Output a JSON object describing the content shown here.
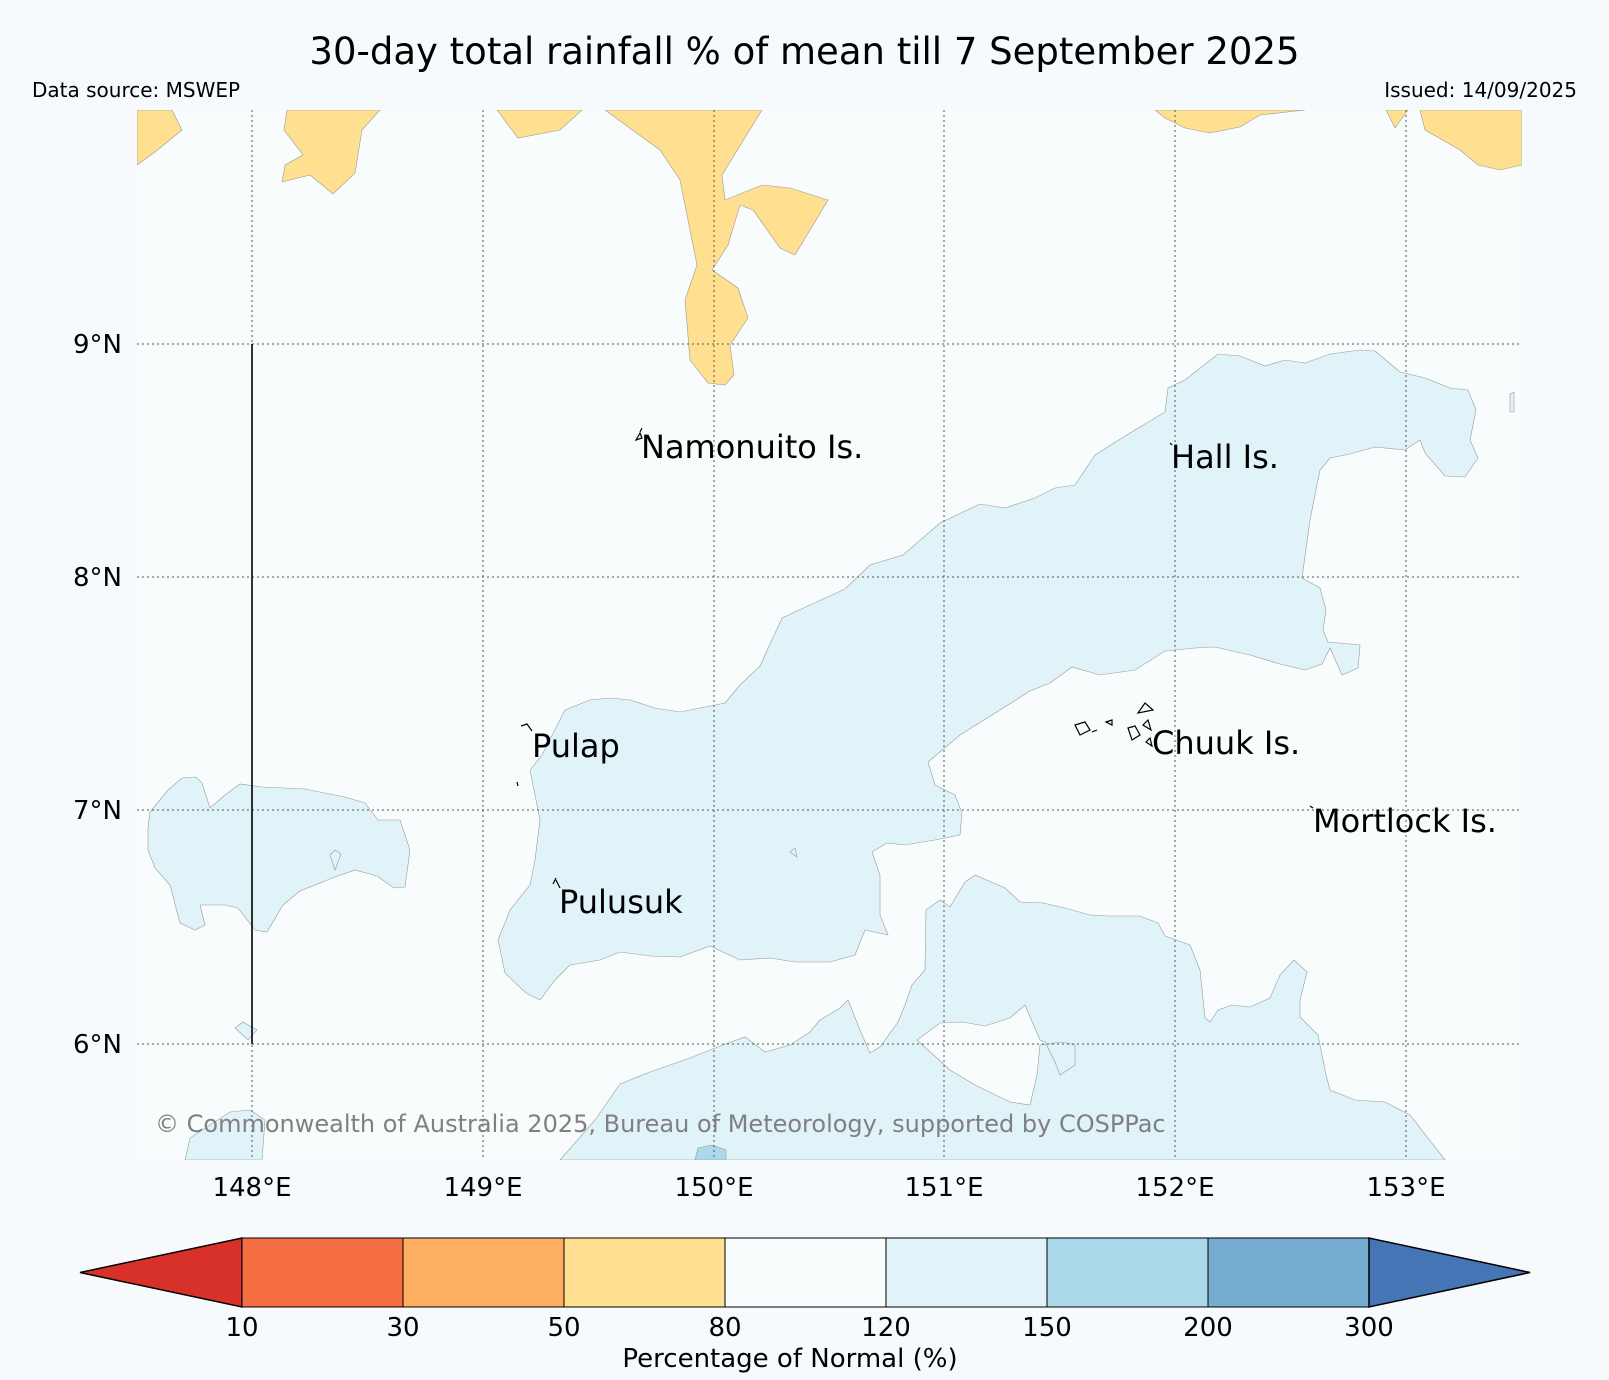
{
  "title": "30-day total rainfall % of mean till 7 September 2025",
  "data_source": "Data source: MSWEP",
  "issued": "Issued: 14/09/2025",
  "copyright": "© Commonwealth of Australia 2025, Bureau of Meteorology, supported by COSPPac",
  "map": {
    "lon_range": [
      147.5,
      153.5
    ],
    "lat_range": [
      5.5,
      10.0
    ],
    "lon_ticks": [
      {
        "value": 148,
        "label": "148°E"
      },
      {
        "value": 149,
        "label": "149°E"
      },
      {
        "value": 150,
        "label": "150°E"
      },
      {
        "value": 151,
        "label": "151°E"
      },
      {
        "value": 152,
        "label": "152°E"
      },
      {
        "value": 153,
        "label": "153°E"
      }
    ],
    "lat_ticks": [
      {
        "value": 9,
        "label": "9°N"
      },
      {
        "value": 8,
        "label": "8°N"
      },
      {
        "value": 7,
        "label": "7°N"
      },
      {
        "value": 6,
        "label": "6°N"
      }
    ],
    "gridlines": "dotted",
    "background_category": "80-120",
    "places": [
      {
        "name": "Namonuito Is.",
        "lon": 149.6,
        "lat": 8.6
      },
      {
        "name": "Hall Is.",
        "lon": 152.0,
        "lat": 8.55
      },
      {
        "name": "Pulap",
        "lon": 149.2,
        "lat": 7.35
      },
      {
        "name": "Chuuk Is.",
        "lon": 151.85,
        "lat": 7.35
      },
      {
        "name": "Mortlock Is.",
        "lon": 152.6,
        "lat": 7.0
      },
      {
        "name": "Pulusuk",
        "lon": 149.3,
        "lat": 6.7
      }
    ]
  },
  "legend": {
    "label": "Percentage of Normal (%)",
    "ticks": [
      "10",
      "30",
      "50",
      "80",
      "120",
      "150",
      "200",
      "300"
    ],
    "bins": [
      {
        "range": "<10",
        "color": "#d7312a"
      },
      {
        "range": "10-30",
        "color": "#f46d43"
      },
      {
        "range": "30-50",
        "color": "#fdae61"
      },
      {
        "range": "50-80",
        "color": "#fee090"
      },
      {
        "range": "80-120",
        "color": "#f8fcfd"
      },
      {
        "range": "120-150",
        "color": "#e0f3f8"
      },
      {
        "range": "150-200",
        "color": "#abd9e9"
      },
      {
        "range": "200-300",
        "color": "#74add1"
      },
      {
        "range": ">300",
        "color": "#4575b4"
      }
    ]
  }
}
